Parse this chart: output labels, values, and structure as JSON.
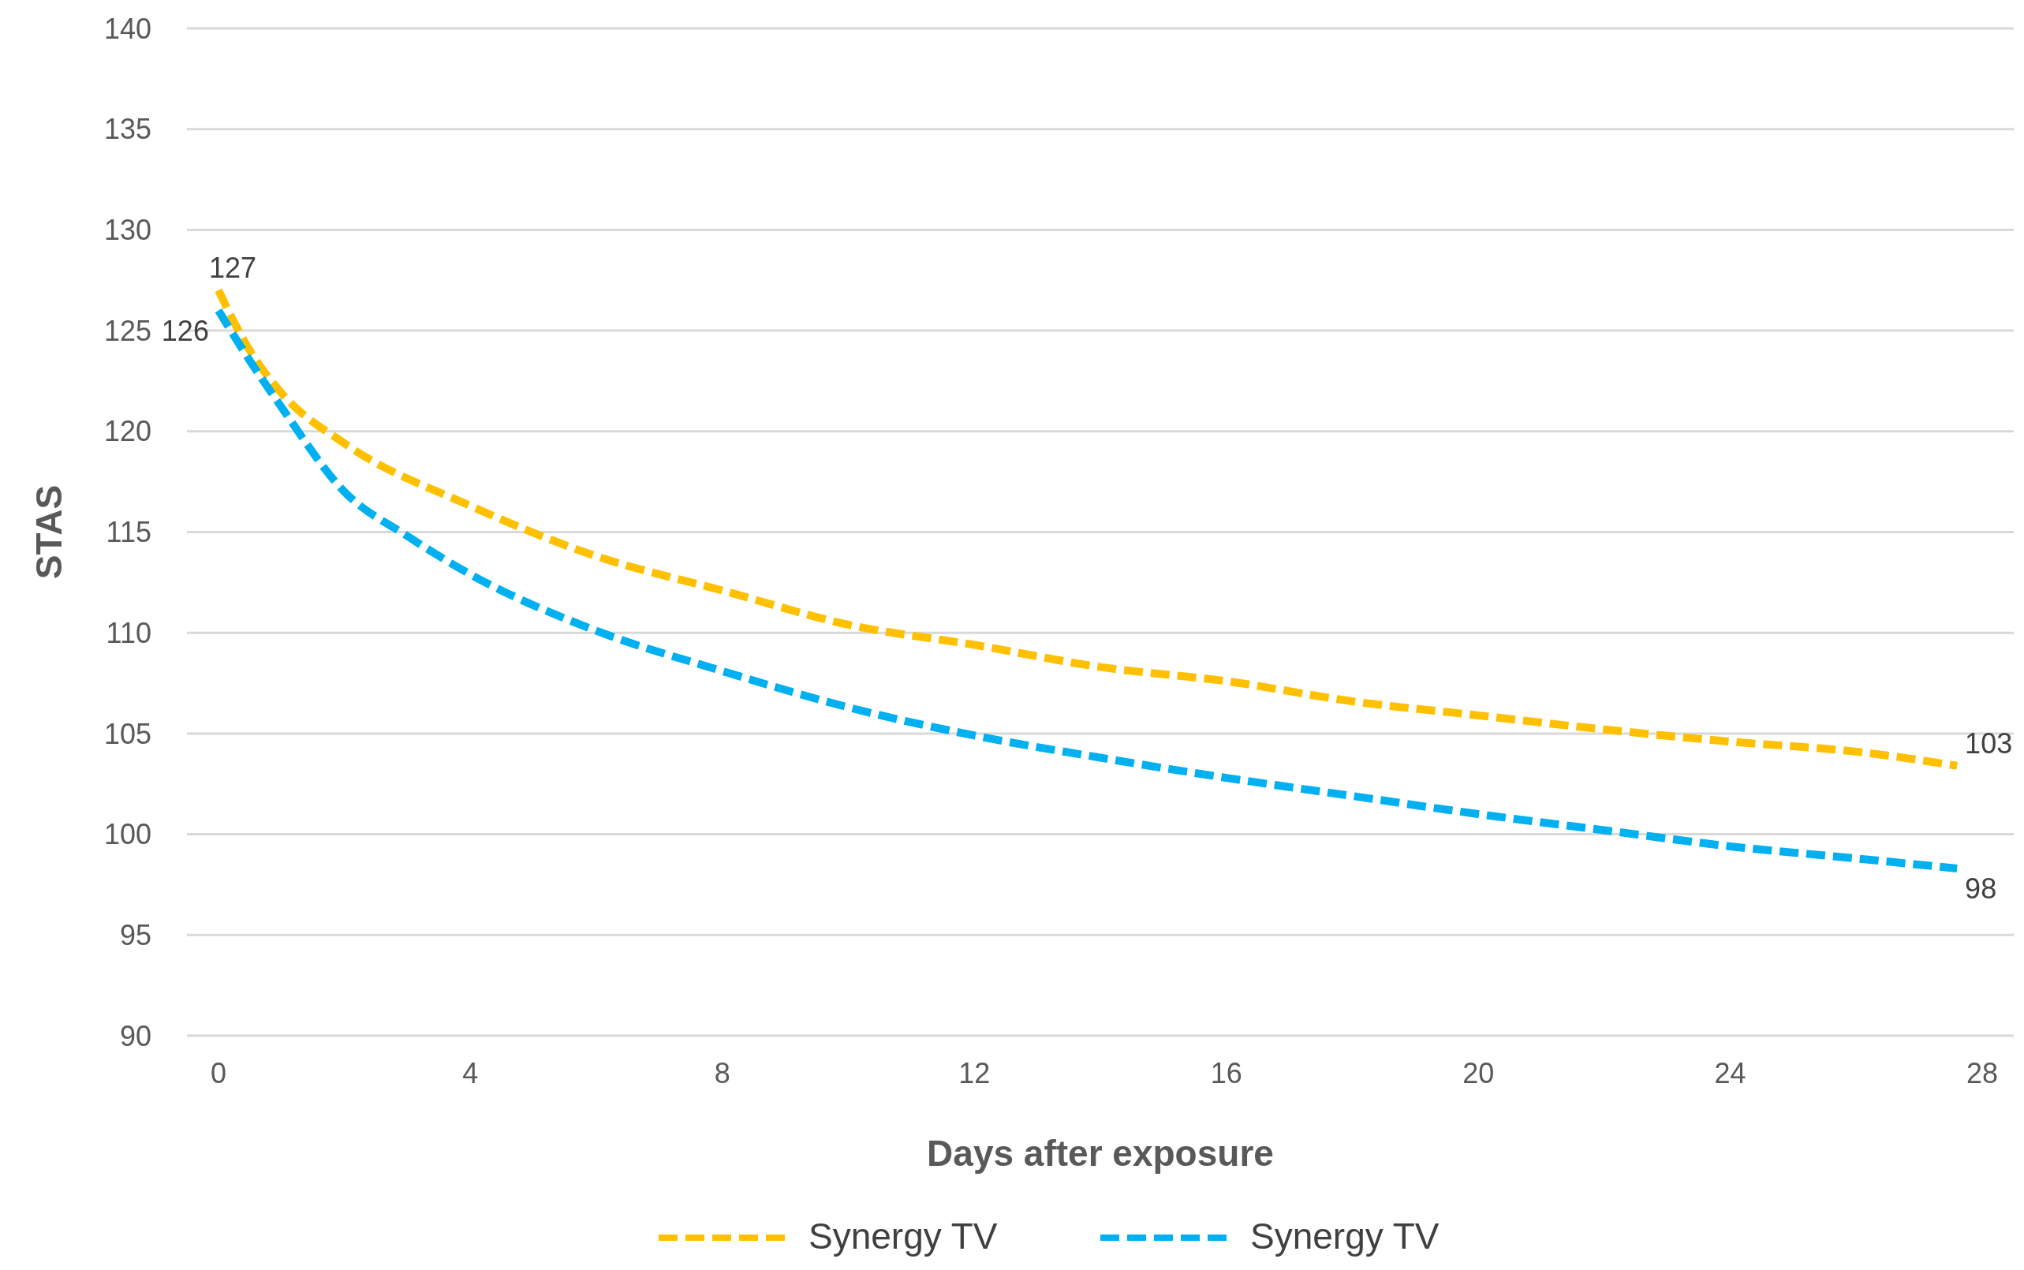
{
  "chart_data": {
    "type": "line",
    "xlabel": "Days after exposure",
    "ylabel": "STAS",
    "xlim": [
      -0.5,
      28.5
    ],
    "xticks": [
      0,
      4,
      8,
      12,
      16,
      20,
      24,
      28
    ],
    "ylim": [
      90,
      140
    ],
    "yticks": [
      90,
      95,
      100,
      105,
      110,
      115,
      120,
      125,
      130,
      135,
      140
    ],
    "grid": "y",
    "legend": "bottom",
    "line_style": "dashed",
    "marker": "none",
    "series": [
      {
        "name": "Synergy TV",
        "color": "#ffc000",
        "x": [
          0,
          0.5,
          1,
          2,
          4,
          6,
          8,
          10,
          12,
          14,
          16,
          18,
          20,
          22,
          24,
          26,
          27.6
        ],
        "values": [
          127,
          124,
          121.9,
          119.4,
          116.3,
          113.8,
          112.1,
          110.4,
          109.4,
          108.3,
          107.6,
          106.6,
          105.9,
          105.2,
          104.6,
          104.1,
          103.4
        ],
        "value_labels": [
          "127",
          null,
          null,
          null,
          null,
          null,
          null,
          null,
          null,
          null,
          null,
          null,
          null,
          null,
          null,
          null,
          "103"
        ]
      },
      {
        "name": "Synergy TV",
        "color": "#00b0f0",
        "x": [
          0,
          0.5,
          1,
          2,
          3,
          4,
          6,
          8,
          10,
          12,
          14,
          16,
          18,
          20,
          22,
          24,
          26,
          27.6
        ],
        "values": [
          126,
          123.5,
          121.2,
          117,
          114.8,
          112.9,
          110.1,
          108.1,
          106.3,
          104.9,
          103.8,
          102.8,
          101.9,
          101,
          100.2,
          99.4,
          98.8,
          98.3
        ],
        "value_labels": [
          "126",
          null,
          null,
          null,
          null,
          null,
          null,
          null,
          null,
          null,
          null,
          null,
          null,
          null,
          null,
          null,
          null,
          "98"
        ]
      }
    ]
  }
}
